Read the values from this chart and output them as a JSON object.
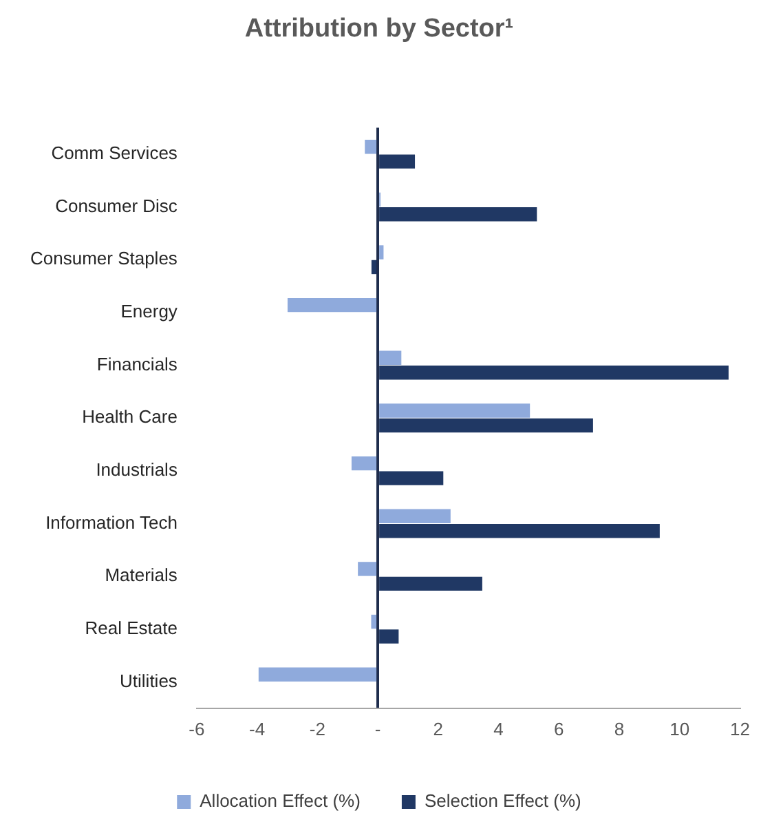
{
  "chart_data": {
    "type": "bar",
    "orientation": "horizontal",
    "title": "Attribution by Sector¹",
    "categories": [
      "Comm Services",
      "Consumer Disc",
      "Consumer Staples",
      "Energy",
      "Financials",
      "Health Care",
      "Industrials",
      "Information Tech",
      "Materials",
      "Real Estate",
      "Utilities"
    ],
    "series": [
      {
        "name": "Allocation Effect (%)",
        "color": "#8faadc",
        "values": [
          -0.43,
          0.09,
          0.19,
          -2.99,
          0.78,
          5.04,
          -0.87,
          2.41,
          -0.66,
          -0.22,
          -3.95
        ]
      },
      {
        "name": "Selection Effect (%)",
        "color": "#203864",
        "values": [
          1.23,
          5.27,
          -0.21,
          null,
          11.62,
          7.13,
          2.17,
          9.34,
          3.46,
          0.69,
          null
        ]
      }
    ],
    "xlim": [
      -6,
      12
    ],
    "xticks": [
      -6,
      -4,
      -2,
      {
        "value": 0,
        "label": "-"
      },
      2,
      4,
      6,
      8,
      10,
      12
    ],
    "grid": false,
    "legend": "bottom"
  }
}
